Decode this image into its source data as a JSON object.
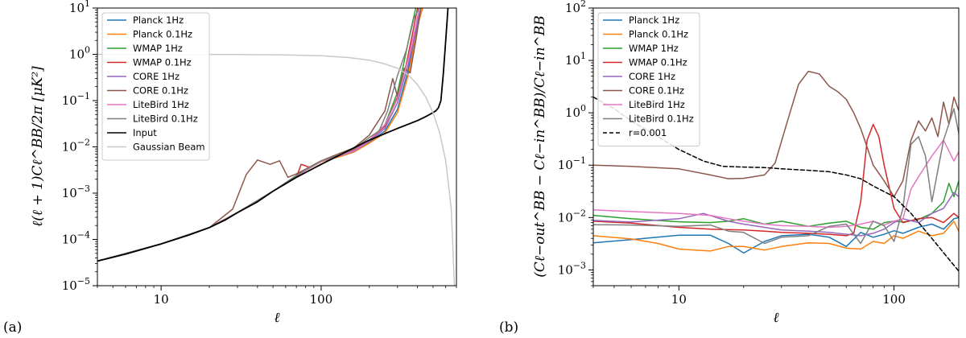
{
  "chart_data": [
    {
      "panel_tag": "(a)",
      "type": "line",
      "xlabel": "ℓ",
      "ylabel": "ℓ(ℓ + 1)Cℓ^BB/2π [μK²]",
      "x_scale": "log",
      "y_scale": "log",
      "xlim": [
        4,
        700
      ],
      "ylim": [
        1e-05,
        10
      ],
      "x_ticks": [
        10,
        100
      ],
      "x_tick_labels": [
        "10",
        "100"
      ],
      "y_ticks": [
        1e-05,
        0.0001,
        0.001,
        0.01,
        0.1,
        1,
        10
      ],
      "y_tick_labels": [
        {
          "base": "10",
          "exp": "−5"
        },
        {
          "base": "10",
          "exp": "−4"
        },
        {
          "base": "10",
          "exp": "−3"
        },
        {
          "base": "10",
          "exp": "−2"
        },
        {
          "base": "10",
          "exp": "−1"
        },
        {
          "base": "10",
          "exp": "0"
        },
        {
          "base": "10",
          "exp": "1"
        }
      ],
      "legend_position": "upper-left",
      "series": [
        {
          "name": "Planck 1Hz",
          "color": "#1f77b4",
          "x": [
            4,
            10,
            20,
            30,
            50,
            80,
            100,
            130,
            160,
            200,
            250,
            300,
            350,
            380,
            400,
            420
          ],
          "y": [
            3.4e-05,
            8e-05,
            0.00018,
            0.00038,
            0.0011,
            0.0031,
            0.0048,
            0.0062,
            0.0078,
            0.0125,
            0.022,
            0.065,
            0.45,
            2.0,
            5.0,
            10.0
          ]
        },
        {
          "name": "Planck 0.1Hz",
          "color": "#ff7f0e",
          "x": [
            4,
            10,
            20,
            30,
            50,
            80,
            100,
            130,
            160,
            200,
            250,
            300,
            350,
            380,
            400,
            430
          ],
          "y": [
            3.4e-05,
            8e-05,
            0.00018,
            0.00038,
            0.0011,
            0.0031,
            0.0048,
            0.0061,
            0.0077,
            0.012,
            0.02,
            0.055,
            0.35,
            1.5,
            4.0,
            10.0
          ]
        },
        {
          "name": "WMAP 1Hz",
          "color": "#2ca02c",
          "x": [
            4,
            10,
            20,
            30,
            50,
            80,
            100,
            130,
            160,
            200,
            250,
            300,
            330,
            360,
            390
          ],
          "y": [
            3.4e-05,
            8e-05,
            0.00018,
            0.00038,
            0.0011,
            0.0033,
            0.005,
            0.0066,
            0.0085,
            0.014,
            0.03,
            0.15,
            0.7,
            3.0,
            10.0
          ]
        },
        {
          "name": "WMAP 0.1Hz",
          "color": "#d62728",
          "x": [
            4,
            10,
            20,
            30,
            50,
            70,
            75,
            85,
            100,
            130,
            160,
            200,
            250,
            300,
            340,
            370,
            400
          ],
          "y": [
            3.4e-05,
            8e-05,
            0.00018,
            0.00038,
            0.0011,
            0.0022,
            0.0042,
            0.0036,
            0.0049,
            0.0066,
            0.0084,
            0.014,
            0.028,
            0.12,
            0.6,
            2.5,
            10.0
          ]
        },
        {
          "name": "CORE 1Hz",
          "color": "#9467bd",
          "x": [
            4,
            10,
            20,
            30,
            50,
            80,
            100,
            130,
            160,
            200,
            250,
            300,
            350,
            390,
            420
          ],
          "y": [
            3.4e-05,
            8e-05,
            0.00018,
            0.00038,
            0.0011,
            0.0031,
            0.0049,
            0.0064,
            0.008,
            0.013,
            0.025,
            0.09,
            0.6,
            3.0,
            10.0
          ]
        },
        {
          "name": "CORE 0.1Hz",
          "color": "#8c564b",
          "x": [
            4,
            10,
            20,
            28,
            34,
            40,
            48,
            55,
            62,
            70,
            80,
            100,
            130,
            160,
            200,
            250,
            280,
            300,
            330,
            360,
            390,
            420
          ],
          "y": [
            3.4e-05,
            8e-05,
            0.00018,
            0.00045,
            0.0025,
            0.0052,
            0.0042,
            0.005,
            0.0022,
            0.0026,
            0.0033,
            0.005,
            0.0072,
            0.0095,
            0.018,
            0.06,
            0.3,
            0.12,
            0.5,
            0.4,
            2.0,
            10.0
          ]
        },
        {
          "name": "LiteBird 1Hz",
          "color": "#e377c2",
          "x": [
            4,
            10,
            20,
            30,
            50,
            80,
            100,
            130,
            160,
            200,
            250,
            300,
            350,
            390,
            410
          ],
          "y": [
            3.4e-05,
            8e-05,
            0.00018,
            0.00038,
            0.0011,
            0.0031,
            0.0049,
            0.0065,
            0.0082,
            0.014,
            0.03,
            0.11,
            0.8,
            4.0,
            10.0
          ]
        },
        {
          "name": "LiteBird 0.1Hz",
          "color": "#7f7f7f",
          "x": [
            4,
            10,
            20,
            30,
            50,
            80,
            100,
            130,
            160,
            200,
            230,
            260,
            300,
            340,
            380,
            410
          ],
          "y": [
            3.4e-05,
            8e-05,
            0.00018,
            0.00038,
            0.0011,
            0.0032,
            0.005,
            0.0066,
            0.009,
            0.016,
            0.022,
            0.06,
            0.35,
            1.2,
            6.0,
            10.0
          ]
        },
        {
          "name": "Input",
          "color": "#000000",
          "x": [
            4,
            6,
            10,
            15,
            20,
            25,
            30,
            40,
            50,
            70,
            100,
            150,
            200,
            300,
            400,
            450,
            500,
            520,
            540,
            560,
            580,
            600,
            620
          ],
          "y": [
            3.4e-05,
            4.8e-05,
            8e-05,
            0.000125,
            0.00018,
            0.00026,
            0.00038,
            0.00065,
            0.0011,
            0.0022,
            0.0042,
            0.0085,
            0.014,
            0.025,
            0.037,
            0.045,
            0.055,
            0.06,
            0.07,
            0.1,
            0.4,
            2.0,
            10.0
          ]
        },
        {
          "name": "Gaussian Beam",
          "color": "#c8c8c8",
          "x": [
            4,
            10,
            30,
            60,
            100,
            150,
            200,
            250,
            300,
            350,
            400,
            450,
            500,
            550,
            600,
            650,
            680
          ],
          "y": [
            1.0,
            1.0,
            0.99,
            0.97,
            0.93,
            0.85,
            0.75,
            0.62,
            0.5,
            0.36,
            0.22,
            0.12,
            0.055,
            0.02,
            0.005,
            0.00045,
            1e-05
          ]
        }
      ]
    },
    {
      "panel_tag": "(b)",
      "type": "line",
      "xlabel": "ℓ",
      "ylabel": "(Cℓ−out^BB − Cℓ−in^BB)/Cℓ−in^BB",
      "x_scale": "log",
      "y_scale": "log",
      "xlim": [
        4,
        200
      ],
      "ylim": [
        0.0005,
        100
      ],
      "x_ticks": [
        10,
        100
      ],
      "x_tick_labels": [
        "10",
        "100"
      ],
      "y_ticks": [
        0.001,
        0.01,
        0.1,
        1,
        10,
        100
      ],
      "y_tick_labels": [
        {
          "base": "10",
          "exp": "−3"
        },
        {
          "base": "10",
          "exp": "−2"
        },
        {
          "base": "10",
          "exp": "−1"
        },
        {
          "base": "10",
          "exp": "0"
        },
        {
          "base": "10",
          "exp": "1"
        },
        {
          "base": "10",
          "exp": "2"
        }
      ],
      "legend_position": "upper-left",
      "series": [
        {
          "name": "Planck 1Hz",
          "color": "#1f77b4",
          "x": [
            4,
            6,
            10,
            14,
            17,
            20,
            25,
            30,
            40,
            50,
            60,
            70,
            80,
            90,
            100,
            110,
            130,
            150,
            170,
            190,
            200
          ],
          "y": [
            0.0033,
            0.0038,
            0.0046,
            0.0046,
            0.0032,
            0.0021,
            0.0035,
            0.0045,
            0.0048,
            0.0042,
            0.0028,
            0.0052,
            0.0042,
            0.0048,
            0.0056,
            0.005,
            0.0065,
            0.0075,
            0.006,
            0.0095,
            0.01
          ]
        },
        {
          "name": "Planck 0.1Hz",
          "color": "#ff7f0e",
          "x": [
            4,
            6,
            8,
            10,
            14,
            17,
            20,
            25,
            30,
            40,
            50,
            60,
            70,
            80,
            90,
            100,
            110,
            130,
            150,
            170,
            190,
            200
          ],
          "y": [
            0.0045,
            0.0039,
            0.0032,
            0.0025,
            0.0023,
            0.0028,
            0.0028,
            0.0024,
            0.0028,
            0.0033,
            0.0032,
            0.0026,
            0.0025,
            0.0035,
            0.0032,
            0.0045,
            0.004,
            0.0055,
            0.0045,
            0.005,
            0.0085,
            0.0055
          ]
        },
        {
          "name": "WMAP 1Hz",
          "color": "#2ca02c",
          "x": [
            4,
            6,
            10,
            14,
            17,
            20,
            25,
            30,
            40,
            50,
            60,
            70,
            80,
            90,
            100,
            110,
            130,
            150,
            170,
            180,
            190,
            200
          ],
          "y": [
            0.011,
            0.0095,
            0.0083,
            0.008,
            0.0085,
            0.0095,
            0.0075,
            0.0085,
            0.0068,
            0.0078,
            0.0085,
            0.0065,
            0.006,
            0.008,
            0.0085,
            0.0082,
            0.0092,
            0.012,
            0.02,
            0.045,
            0.025,
            0.05
          ]
        },
        {
          "name": "WMAP 0.1Hz",
          "color": "#d62728",
          "x": [
            4,
            6,
            10,
            14,
            20,
            25,
            30,
            40,
            50,
            60,
            65,
            70,
            75,
            80,
            85,
            90,
            100,
            110,
            130,
            150,
            170,
            190,
            200
          ],
          "y": [
            0.0085,
            0.0078,
            0.0065,
            0.006,
            0.0058,
            0.0055,
            0.0052,
            0.005,
            0.0048,
            0.0045,
            0.005,
            0.02,
            0.3,
            0.6,
            0.35,
            0.1,
            0.015,
            0.008,
            0.0095,
            0.01,
            0.008,
            0.012,
            0.01
          ]
        },
        {
          "name": "CORE 1Hz",
          "color": "#9467bd",
          "x": [
            4,
            6,
            10,
            13,
            17,
            20,
            25,
            30,
            40,
            50,
            60,
            70,
            80,
            90,
            100,
            110,
            130,
            150,
            170,
            190,
            200
          ],
          "y": [
            0.0088,
            0.0082,
            0.0095,
            0.012,
            0.0085,
            0.0075,
            0.0065,
            0.0058,
            0.0055,
            0.0052,
            0.0048,
            0.0045,
            0.005,
            0.006,
            0.008,
            0.0095,
            0.008,
            0.012,
            0.015,
            0.03,
            0.025
          ]
        },
        {
          "name": "CORE 0.1Hz",
          "color": "#8c564b",
          "x": [
            4,
            6,
            10,
            14,
            17,
            20,
            25,
            28,
            32,
            36,
            40,
            45,
            50,
            55,
            60,
            65,
            70,
            75,
            80,
            90,
            100,
            110,
            120,
            130,
            140,
            150,
            160,
            170,
            180,
            190,
            200
          ],
          "y": [
            0.1,
            0.095,
            0.085,
            0.065,
            0.055,
            0.056,
            0.065,
            0.11,
            0.7,
            3.5,
            6.2,
            5.5,
            3.2,
            2.5,
            1.8,
            1.0,
            0.5,
            0.22,
            0.1,
            0.05,
            0.025,
            0.05,
            0.3,
            0.7,
            0.45,
            0.8,
            0.35,
            1.6,
            0.6,
            2.0,
            1.1
          ]
        },
        {
          "name": "LiteBird 1Hz",
          "color": "#e377c2",
          "x": [
            4,
            6,
            10,
            14,
            17,
            20,
            25,
            30,
            40,
            50,
            60,
            70,
            80,
            90,
            100,
            110,
            120,
            130,
            150,
            170,
            190,
            200
          ],
          "y": [
            0.014,
            0.013,
            0.012,
            0.011,
            0.0095,
            0.0085,
            0.0075,
            0.007,
            0.0068,
            0.0065,
            0.0068,
            0.0075,
            0.0085,
            0.0072,
            0.0085,
            0.0095,
            0.035,
            0.06,
            0.15,
            0.3,
            0.12,
            0.18
          ]
        },
        {
          "name": "LiteBird 0.1Hz",
          "color": "#7f7f7f",
          "x": [
            4,
            6,
            10,
            14,
            17,
            20,
            25,
            30,
            40,
            50,
            60,
            70,
            80,
            90,
            100,
            110,
            120,
            130,
            140,
            150,
            170,
            190,
            200
          ],
          "y": [
            0.0073,
            0.0072,
            0.0068,
            0.0072,
            0.0055,
            0.0052,
            0.0032,
            0.0042,
            0.0045,
            0.0068,
            0.0075,
            0.0032,
            0.0085,
            0.007,
            0.0035,
            0.015,
            0.25,
            0.35,
            0.15,
            0.02,
            0.3,
            1.2,
            0.4
          ]
        },
        {
          "name": "r=0.001",
          "color": "#000000",
          "dashed": true,
          "x": [
            4,
            5,
            6,
            8,
            10,
            13,
            16,
            20,
            25,
            30,
            40,
            50,
            60,
            70,
            80,
            100,
            120,
            150,
            180,
            200
          ],
          "y": [
            2.0,
            1.2,
            0.7,
            0.35,
            0.2,
            0.12,
            0.095,
            0.092,
            0.09,
            0.085,
            0.08,
            0.075,
            0.065,
            0.055,
            0.04,
            0.025,
            0.012,
            0.004,
            0.0016,
            0.00095
          ]
        }
      ]
    }
  ]
}
